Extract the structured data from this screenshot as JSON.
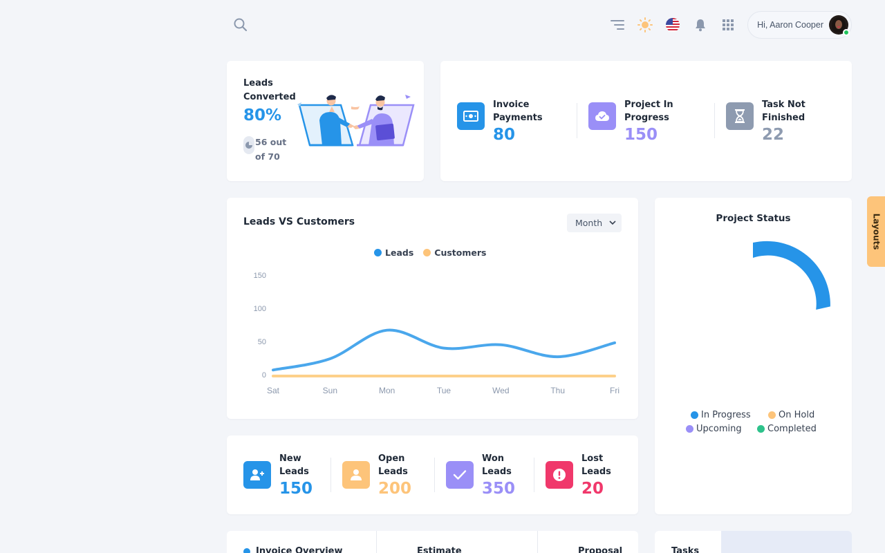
{
  "header": {
    "greeting": "Hi, Aaron Cooper",
    "icons": [
      "search-icon",
      "menu-lines-icon",
      "sun-icon",
      "us-flag-icon",
      "bell-icon",
      "apps-grid-icon"
    ]
  },
  "leads_converted": {
    "title": "Leads Converted",
    "percent": "80%",
    "sub": "56 out of 70"
  },
  "summary": {
    "items": [
      {
        "label": "Invoice Payments",
        "value": "80",
        "color": "#2694e8",
        "icon": "money-icon"
      },
      {
        "label": "Project In Progress",
        "value": "150",
        "color": "#9a8ff7",
        "icon": "cloud-icon"
      },
      {
        "label": "Task Not Finished",
        "value": "22",
        "color": "#8e9bb0",
        "icon": "hourglass-icon"
      }
    ]
  },
  "leads_chart": {
    "title": "Leads VS Customers",
    "period": "Month",
    "legend": [
      "Leads",
      "Customers"
    ]
  },
  "chart_data": {
    "type": "line",
    "title": "Leads VS Customers",
    "categories": [
      "Sat",
      "Sun",
      "Mon",
      "Tue",
      "Wed",
      "Thu",
      "Fri"
    ],
    "y_ticks": [
      "150",
      "100",
      "50",
      "0"
    ],
    "ylim": [
      0,
      150
    ],
    "series": [
      {
        "name": "Leads",
        "color": "#4aa7ec",
        "values": [
          7,
          24,
          67,
          40,
          45,
          27,
          48
        ]
      },
      {
        "name": "Customers",
        "color": "#fdd08a",
        "values": [
          0,
          0,
          0,
          0,
          0,
          0,
          0
        ]
      }
    ],
    "grid": false,
    "legend_position": "top-center"
  },
  "project_status": {
    "title": "Project Status",
    "legend": [
      {
        "label": "In Progress",
        "color": "#2694e8"
      },
      {
        "label": "On Hold",
        "color": "#fdc47a"
      },
      {
        "label": "Upcoming",
        "color": "#9a8ff7"
      },
      {
        "label": "Completed",
        "color": "#2ec28b"
      }
    ]
  },
  "lead_stats": {
    "items": [
      {
        "label": "New Leads",
        "value": "150",
        "color": "#2694e8",
        "icon": "user-plus-icon"
      },
      {
        "label": "Open Leads",
        "value": "200",
        "color": "#fdc47a",
        "icon": "user-icon"
      },
      {
        "label": "Won Leads",
        "value": "350",
        "color": "#9a8ff7",
        "icon": "check-icon"
      },
      {
        "label": "Lost Leads",
        "value": "20",
        "color": "#f0386b",
        "icon": "alert-icon"
      }
    ]
  },
  "bottom": {
    "tabs": [
      "Invoice Overview",
      "Estimate",
      "Proposal"
    ],
    "tasks_title": "Tasks"
  },
  "layouts_tab": "Layouts"
}
